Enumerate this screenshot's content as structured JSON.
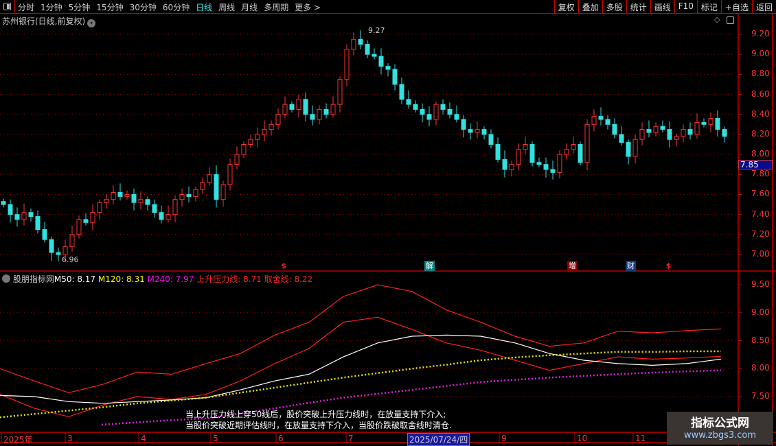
{
  "toolbar": {
    "periods": [
      "分时",
      "1分钟",
      "5分钟",
      "15分钟",
      "30分钟",
      "60分钟",
      "日线",
      "周线",
      "月线",
      "多周期",
      "更多 >"
    ],
    "active": "日线",
    "buttons": [
      "复权",
      "叠加",
      "多股",
      "统计",
      "画线",
      "F10",
      "标记",
      "+自选",
      "返回"
    ]
  },
  "chart_title": "苏州银行(日线,前复权)",
  "price_axis": {
    "ticks": [
      "9.20",
      "9.00",
      "8.80",
      "8.60",
      "8.40",
      "8.20",
      "8.00",
      "7.80",
      "7.60",
      "7.40",
      "7.20",
      "7.00"
    ],
    "current_price": "7.85"
  },
  "annotations": {
    "high": "9.27",
    "low": "6.96"
  },
  "event_markers": [
    {
      "label": "$",
      "color": "#ff2020"
    },
    {
      "label": "解",
      "color": "#108080"
    },
    {
      "label": "增",
      "color": "#8a0000"
    },
    {
      "label": "财",
      "color": "#1a3a7a"
    },
    {
      "label": "$",
      "color": "#ff2020"
    }
  ],
  "colors": {
    "up": "#ff3333",
    "down": "#33e0e0",
    "axis": "#c00000"
  },
  "chart_data": {
    "type": "candlestick",
    "closes": [
      7.5,
      7.4,
      7.35,
      7.42,
      7.38,
      7.25,
      7.15,
      7.02,
      7.0,
      7.08,
      7.2,
      7.35,
      7.32,
      7.42,
      7.52,
      7.55,
      7.62,
      7.58,
      7.6,
      7.52,
      7.55,
      7.5,
      7.42,
      7.35,
      7.4,
      7.55,
      7.6,
      7.58,
      7.65,
      7.72,
      7.8,
      7.55,
      7.7,
      7.9,
      8.0,
      8.1,
      8.15,
      8.2,
      8.25,
      8.3,
      8.4,
      8.5,
      8.45,
      8.55,
      8.4,
      8.35,
      8.45,
      8.4,
      8.5,
      8.75,
      9.05,
      9.15,
      9.1,
      9.0,
      8.98,
      8.88,
      8.85,
      8.7,
      8.55,
      8.5,
      8.45,
      8.4,
      8.35,
      8.5,
      8.45,
      8.4,
      8.35,
      8.25,
      8.22,
      8.25,
      8.2,
      8.1,
      7.95,
      7.85,
      7.9,
      8.05,
      8.1,
      7.92,
      7.9,
      7.85,
      7.82,
      8.0,
      8.05,
      8.1,
      7.92,
      8.3,
      8.38,
      8.35,
      8.3,
      8.2,
      8.12,
      7.98,
      8.15,
      8.25,
      8.22,
      8.28,
      8.25,
      8.15,
      8.18,
      8.25,
      8.2,
      8.32,
      8.3,
      8.36,
      8.25,
      8.18
    ],
    "ylim": [
      6.9,
      9.35
    ]
  },
  "indicator": {
    "name": "股朋指标网",
    "legend": [
      {
        "label": "M50: 8.17",
        "color": "#ffffff"
      },
      {
        "label": "M120: 8.31",
        "color": "#ffff00"
      },
      {
        "label": "M240: 7.97",
        "color": "#ff00ff"
      },
      {
        "label": "上升压力线: 8.71",
        "color": "#ff2020"
      },
      {
        "label": "取舍线: 8.22",
        "color": "#ff2020"
      }
    ],
    "axis_ticks": [
      "9.50",
      "9.00",
      "8.50",
      "8.00",
      "7.50"
    ],
    "series": {
      "pressure": [
        8.0,
        7.78,
        7.57,
        7.72,
        7.94,
        7.9,
        8.09,
        8.27,
        8.6,
        8.83,
        9.29,
        9.5,
        9.38,
        9.05,
        8.83,
        8.58,
        8.4,
        8.46,
        8.67,
        8.64,
        8.68,
        8.71
      ],
      "cutoff": [
        7.54,
        7.29,
        7.14,
        7.35,
        7.5,
        7.45,
        7.54,
        7.78,
        8.09,
        8.36,
        8.83,
        8.92,
        8.7,
        8.46,
        8.33,
        8.15,
        7.97,
        8.09,
        8.21,
        8.17,
        8.19,
        8.22
      ],
      "m50": [
        7.52,
        7.5,
        7.41,
        7.38,
        7.41,
        7.44,
        7.48,
        7.62,
        7.78,
        7.9,
        8.21,
        8.46,
        8.58,
        8.6,
        8.58,
        8.46,
        8.27,
        8.15,
        8.09,
        8.06,
        8.09,
        8.17
      ],
      "m120": [
        7.13,
        7.19,
        7.25,
        7.31,
        7.38,
        7.43,
        7.48,
        7.57,
        7.66,
        7.75,
        7.84,
        7.92,
        8.0,
        8.07,
        8.15,
        8.2,
        8.24,
        8.27,
        8.3,
        8.3,
        8.31,
        8.31
      ],
      "m240": [
        null,
        null,
        null,
        7.0,
        7.04,
        7.08,
        7.11,
        7.2,
        7.29,
        7.39,
        7.48,
        7.55,
        7.62,
        7.69,
        7.76,
        7.8,
        7.84,
        7.87,
        7.9,
        7.93,
        7.95,
        7.97
      ]
    },
    "notes": [
      "当上升压力线上穿50线后，股价突破上升压力线时，在放量支持下介入;",
      "当股价突破近期评估线时，在放量支持下介入，当股价跌破取舍线时清仓."
    ]
  },
  "date_axis": {
    "labels": [
      "2025年",
      "3",
      "4",
      "5",
      "6",
      "7",
      "9",
      "10",
      "11"
    ],
    "cursor_date": "2025/07/24/四"
  },
  "watermark": {
    "title": "指标公式网",
    "url": "www.zbgs3.com"
  }
}
